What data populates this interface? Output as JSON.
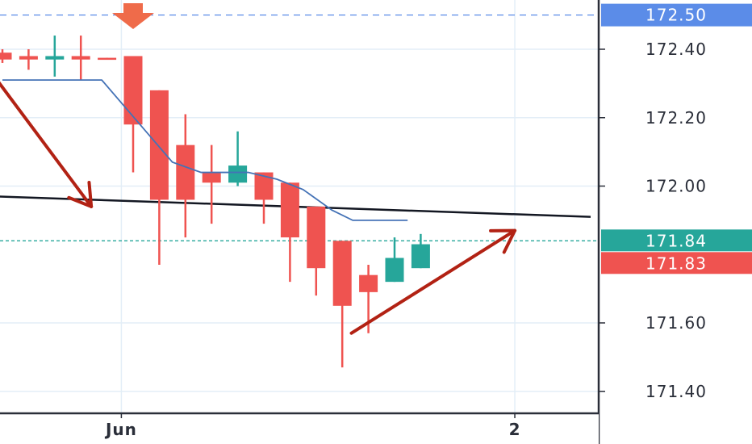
{
  "chart_data": {
    "type": "candlestick",
    "ylim": [
      171.34,
      172.55
    ],
    "y_ticks": [
      {
        "value": 172.4,
        "label": "172.40"
      },
      {
        "value": 172.2,
        "label": "172.20"
      },
      {
        "value": 172.0,
        "label": "172.00"
      },
      {
        "value": 171.6,
        "label": "171.60"
      },
      {
        "value": 171.4,
        "label": "171.40"
      }
    ],
    "x_ticks": [
      {
        "index": 4.55,
        "label": "Jun"
      },
      {
        "index": 19.6,
        "label": "2"
      }
    ],
    "candles": [
      {
        "o": 172.39,
        "h": 172.4,
        "l": 172.36,
        "c": 172.37
      },
      {
        "o": 172.38,
        "h": 172.4,
        "l": 172.34,
        "c": 172.37
      },
      {
        "o": 172.37,
        "h": 172.44,
        "l": 172.32,
        "c": 172.38
      },
      {
        "o": 172.38,
        "h": 172.44,
        "l": 172.31,
        "c": 172.37
      },
      {
        "o": 172.375,
        "h": 172.375,
        "l": 172.37,
        "c": 172.37
      },
      {
        "o": 172.38,
        "h": 172.38,
        "l": 172.04,
        "c": 172.18
      },
      {
        "o": 172.28,
        "h": 172.28,
        "l": 171.77,
        "c": 171.96
      },
      {
        "o": 172.12,
        "h": 172.21,
        "l": 171.85,
        "c": 171.96
      },
      {
        "o": 172.04,
        "h": 172.12,
        "l": 171.89,
        "c": 172.01
      },
      {
        "o": 172.01,
        "h": 172.16,
        "l": 172.0,
        "c": 172.06
      },
      {
        "o": 172.04,
        "h": 172.04,
        "l": 171.89,
        "c": 171.96
      },
      {
        "o": 172.01,
        "h": 172.01,
        "l": 171.72,
        "c": 171.85
      },
      {
        "o": 171.94,
        "h": 171.94,
        "l": 171.68,
        "c": 171.76
      },
      {
        "o": 171.84,
        "h": 171.84,
        "l": 171.47,
        "c": 171.65
      },
      {
        "o": 171.74,
        "h": 171.77,
        "l": 171.57,
        "c": 171.69
      },
      {
        "o": 171.72,
        "h": 171.85,
        "l": 171.72,
        "c": 171.79
      },
      {
        "o": 171.76,
        "h": 171.86,
        "l": 171.76,
        "c": 171.83
      }
    ],
    "moving_average": [
      {
        "index": 0,
        "value": 172.31
      },
      {
        "index": 3.8,
        "value": 172.31
      },
      {
        "index": 5.6,
        "value": 172.15
      },
      {
        "index": 6.5,
        "value": 172.07
      },
      {
        "index": 7.6,
        "value": 172.04
      },
      {
        "index": 9.4,
        "value": 172.04
      },
      {
        "index": 10.5,
        "value": 172.02
      },
      {
        "index": 11.5,
        "value": 171.99
      },
      {
        "index": 12.6,
        "value": 171.93
      },
      {
        "index": 13.4,
        "value": 171.9
      },
      {
        "index": 15.5,
        "value": 171.9
      }
    ],
    "trend_line": [
      {
        "index": -0.3,
        "value": 171.97
      },
      {
        "index": 22.5,
        "value": 171.91
      }
    ],
    "target_price": {
      "value": 172.5,
      "label": "172.50"
    },
    "last_price_lines": [
      {
        "value": 171.84,
        "label": "171.84",
        "color": "#26a69a"
      },
      {
        "value": 171.83,
        "label": "171.83",
        "color": "#ef5350"
      }
    ],
    "arrows": [
      {
        "from": {
          "index": -0.5,
          "value": 172.34
        },
        "to": {
          "index": 3.4,
          "value": 171.94
        },
        "head": "open"
      },
      {
        "from": {
          "index": 13.35,
          "value": 171.57
        },
        "to": {
          "index": 19.6,
          "value": 171.87
        },
        "head": "open"
      }
    ],
    "colors": {
      "up": "#26a69a",
      "down": "#ef5350",
      "moving_average": "#4472b6",
      "trend_line": "#131722",
      "arrow": "#b22214",
      "target_badge": "#5b8ce8",
      "grid": "#e3eef7",
      "axis_line": "#2a2e39"
    }
  }
}
